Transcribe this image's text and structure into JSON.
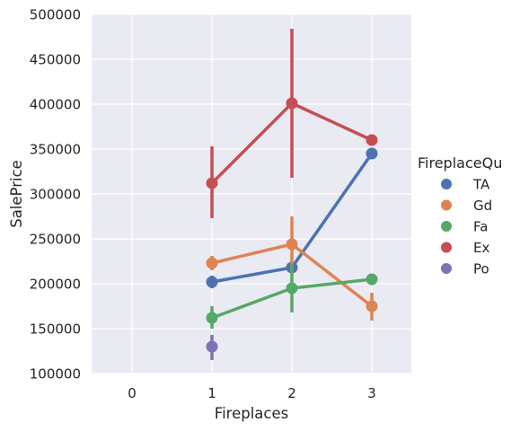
{
  "chart_data": {
    "type": "line",
    "xlabel": "Fireplaces",
    "ylabel": "SalePrice",
    "categories": [
      "0",
      "1",
      "2",
      "3"
    ],
    "ylim": [
      100000,
      500000
    ],
    "yticks": [
      "100000",
      "150000",
      "200000",
      "250000",
      "300000",
      "350000",
      "400000",
      "450000",
      "500000"
    ],
    "grid": true,
    "legend": {
      "title": "FireplaceQu",
      "placement": "right"
    },
    "series": [
      {
        "name": "TA",
        "color": "#4c72b0",
        "points": [
          {
            "x": "1",
            "y": 202000,
            "ci": [
              195000,
              209000
            ]
          },
          {
            "x": "2",
            "y": 218000,
            "ci": [
              213000,
              224000
            ]
          },
          {
            "x": "3",
            "y": 345000,
            "ci": [
              343000,
              347000
            ]
          }
        ]
      },
      {
        "name": "Gd",
        "color": "#dd8452",
        "points": [
          {
            "x": "1",
            "y": 223000,
            "ci": [
              215000,
              231000
            ]
          },
          {
            "x": "2",
            "y": 244000,
            "ci": [
              216000,
              275000
            ]
          },
          {
            "x": "3",
            "y": 175000,
            "ci": [
              159000,
              190000
            ]
          }
        ]
      },
      {
        "name": "Fa",
        "color": "#55a868",
        "points": [
          {
            "x": "1",
            "y": 162000,
            "ci": [
              150000,
              175000
            ]
          },
          {
            "x": "2",
            "y": 195000,
            "ci": [
              168000,
              222000
            ]
          },
          {
            "x": "3",
            "y": 205000,
            "ci": [
              203000,
              207000
            ]
          }
        ]
      },
      {
        "name": "Ex",
        "color": "#c44e52",
        "points": [
          {
            "x": "1",
            "y": 312000,
            "ci": [
              273000,
              353000
            ]
          },
          {
            "x": "2",
            "y": 401000,
            "ci": [
              318000,
              484000
            ]
          },
          {
            "x": "3",
            "y": 360000,
            "ci": [
              358000,
              362000
            ]
          }
        ]
      },
      {
        "name": "Po",
        "color": "#8172b3",
        "points": [
          {
            "x": "1",
            "y": 130000,
            "ci": [
              115000,
              143000
            ]
          }
        ]
      }
    ]
  }
}
